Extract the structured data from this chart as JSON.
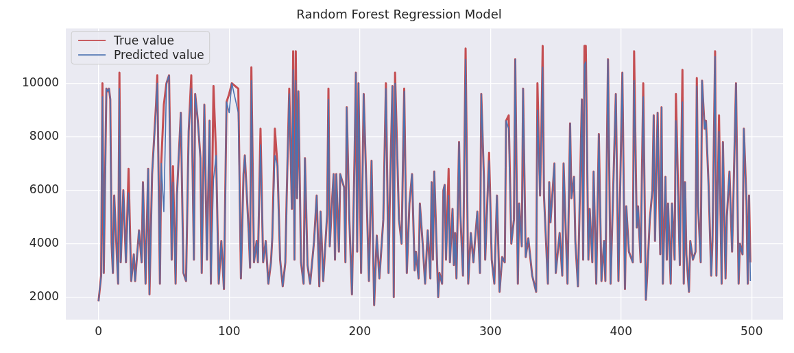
{
  "chart_data": {
    "type": "line",
    "title": "Random Forest Regression Model",
    "legend": "top left",
    "grid": true,
    "marker": "none",
    "xlim": [
      -25,
      524
    ],
    "xticks": [
      0,
      100,
      200,
      300,
      400,
      500
    ],
    "ylim": [
      1150,
      12050
    ],
    "yticks": [
      2000,
      4000,
      6000,
      8000,
      10000
    ],
    "x": [
      0,
      2,
      3,
      4,
      6,
      7,
      8,
      9,
      10,
      11,
      12,
      15,
      16,
      17,
      19,
      21,
      23,
      25,
      27,
      28,
      31,
      33,
      34,
      36,
      38,
      39,
      41,
      44,
      45,
      47,
      48,
      50,
      52,
      54,
      56,
      57,
      59,
      60,
      63,
      65,
      67,
      69,
      71,
      73,
      74,
      76,
      78,
      79,
      81,
      83,
      85,
      86,
      88,
      90,
      92,
      94,
      96,
      98,
      100,
      102,
      107,
      109,
      111,
      112,
      115,
      116,
      117,
      119,
      121,
      122,
      124,
      126,
      128,
      130,
      132,
      133,
      135,
      137,
      139,
      141,
      143,
      144,
      146,
      148,
      149,
      150,
      151,
      152,
      153,
      155,
      157,
      158,
      160,
      162,
      165,
      167,
      169,
      170,
      172,
      175,
      176,
      177,
      179,
      180,
      181,
      182,
      184,
      185,
      188,
      189,
      190,
      192,
      194,
      196,
      197,
      198,
      199,
      201,
      203,
      205,
      207,
      209,
      211,
      213,
      215,
      218,
      220,
      222,
      223,
      225,
      226,
      227,
      230,
      232,
      234,
      236,
      238,
      240,
      242,
      243,
      245,
      246,
      248,
      250,
      252,
      254,
      255,
      256,
      257,
      260,
      261,
      263,
      264,
      265,
      266,
      268,
      269,
      271,
      272,
      273,
      274,
      276,
      277,
      279,
      281,
      283,
      285,
      287,
      288,
      290,
      292,
      293,
      295,
      296,
      299,
      301,
      303,
      305,
      307,
      309,
      311,
      312,
      314,
      316,
      318,
      319,
      321,
      322,
      324,
      325,
      327,
      329,
      332,
      335,
      336,
      338,
      339,
      340,
      341,
      344,
      345,
      346,
      349,
      350,
      353,
      355,
      356,
      359,
      361,
      362,
      364,
      365,
      367,
      370,
      371,
      372,
      373,
      375,
      376,
      378,
      379,
      381,
      383,
      385,
      387,
      388,
      390,
      392,
      396,
      398,
      401,
      403,
      404,
      406,
      409,
      410,
      412,
      413,
      415,
      417,
      419,
      420,
      422,
      424,
      425,
      426,
      428,
      430,
      431,
      432,
      434,
      435,
      436,
      438,
      439,
      441,
      442,
      445,
      447,
      448,
      449,
      450,
      452,
      453,
      455,
      457,
      458,
      459,
      461,
      462,
      464,
      465,
      467,
      469,
      470,
      472,
      473,
      475,
      477,
      478,
      480,
      481,
      483,
      485,
      486,
      488,
      490,
      491,
      493,
      494,
      496,
      497,
      498,
      499
    ],
    "series": [
      {
        "name": "True value",
        "color": "#c44e52",
        "values": [
          1850,
          2800,
          10000,
          2900,
          9800,
          9700,
          9800,
          9400,
          4000,
          2900,
          5800,
          2500,
          10400,
          3300,
          6000,
          3300,
          6800,
          2600,
          3600,
          2600,
          4500,
          3300,
          6300,
          2500,
          6800,
          2100,
          6600,
          9200,
          10300,
          2500,
          7000,
          9200,
          10000,
          10300,
          3400,
          6900,
          2500,
          5800,
          8900,
          2900,
          2600,
          8200,
          10300,
          3400,
          9600,
          8600,
          7200,
          2900,
          9200,
          3400,
          8600,
          2500,
          9900,
          7300,
          2500,
          4100,
          2300,
          9300,
          9600,
          10000,
          9800,
          2700,
          6600,
          7300,
          4400,
          3100,
          10600,
          3300,
          4100,
          3300,
          8300,
          3300,
          4100,
          2500,
          3300,
          4200,
          8300,
          6900,
          3400,
          2400,
          3300,
          5700,
          9800,
          5300,
          11200,
          3400,
          11200,
          5700,
          9700,
          3300,
          2500,
          7200,
          3200,
          2500,
          4100,
          5800,
          2400,
          5200,
          2600,
          5100,
          9800,
          3900,
          5800,
          6600,
          3400,
          6600,
          3700,
          6600,
          6100,
          3300,
          9100,
          4900,
          2100,
          7300,
          10400,
          3700,
          10000,
          2900,
          9600,
          6200,
          2600,
          7100,
          1700,
          4300,
          2700,
          4900,
          10000,
          2900,
          5700,
          9900,
          2000,
          10400,
          4900,
          4000,
          9800,
          2900,
          5500,
          6600,
          3000,
          3700,
          2700,
          5500,
          4100,
          2500,
          4500,
          2700,
          6300,
          3400,
          6700,
          2000,
          2900,
          2500,
          6000,
          6200,
          3400,
          6800,
          3300,
          5300,
          3200,
          4400,
          2700,
          7800,
          5100,
          2800,
          11300,
          2500,
          4400,
          3300,
          4000,
          5200,
          2900,
          9600,
          6500,
          3400,
          7400,
          3400,
          2500,
          5800,
          2200,
          3500,
          3300,
          8600,
          8800,
          4000,
          4900,
          10900,
          2500,
          5500,
          3900,
          9800,
          3500,
          4200,
          2800,
          2200,
          10000,
          5800,
          8200,
          11400,
          5800,
          2500,
          6300,
          4800,
          7000,
          2900,
          4400,
          2800,
          7000,
          2500,
          8500,
          5700,
          6500,
          4100,
          2400,
          9400,
          3400,
          11400,
          11400,
          3400,
          5300,
          3300,
          6700,
          2500,
          8100,
          2600,
          4100,
          2600,
          10900,
          2500,
          9600,
          2600,
          10400,
          2300,
          5400,
          3700,
          3300,
          11200,
          4600,
          5400,
          3300,
          10000,
          1900,
          2800,
          4900,
          6000,
          8800,
          4100,
          8900,
          3600,
          9100,
          2500,
          6500,
          3400,
          5500,
          2500,
          5500,
          3400,
          9600,
          3200,
          10500,
          2500,
          6300,
          3600,
          2200,
          4100,
          3400,
          3700,
          10200,
          5400,
          3300,
          10100,
          8300,
          8600,
          6200,
          2800,
          4100,
          11200,
          2800,
          8800,
          2500,
          7800,
          2700,
          5000,
          6700,
          3700,
          5700,
          10000,
          2500,
          4000,
          3600,
          8300,
          5600,
          2500,
          5800,
          3300
        ]
      },
      {
        "name": "Predicted value",
        "color": "#4c72b0",
        "values": [
          1850,
          2800,
          9500,
          2900,
          9800,
          9700,
          9800,
          9400,
          4000,
          2900,
          5800,
          2500,
          9800,
          3300,
          6000,
          3300,
          5900,
          2600,
          3600,
          2600,
          4500,
          3300,
          6300,
          2500,
          6800,
          2100,
          6600,
          9000,
          10000,
          2500,
          7000,
          5200,
          10000,
          10300,
          3400,
          6300,
          2500,
          5800,
          8900,
          2900,
          2600,
          8200,
          9800,
          3400,
          9600,
          8600,
          7200,
          2900,
          9200,
          3400,
          8600,
          2500,
          6400,
          7300,
          2500,
          4100,
          2300,
          9300,
          8900,
          10000,
          8900,
          2700,
          6600,
          7300,
          4400,
          3100,
          10100,
          3300,
          4100,
          3300,
          7700,
          3300,
          4100,
          2500,
          3300,
          4200,
          7300,
          6900,
          3400,
          2400,
          3300,
          5700,
          9600,
          5300,
          10500,
          3400,
          10100,
          5700,
          9700,
          3300,
          2500,
          7200,
          3200,
          2500,
          4100,
          5800,
          2400,
          5200,
          2600,
          5100,
          9400,
          3900,
          5800,
          6600,
          3400,
          6600,
          3700,
          6600,
          6100,
          3300,
          9100,
          4900,
          2100,
          7300,
          10400,
          3700,
          10000,
          2900,
          9600,
          6200,
          2600,
          7100,
          1700,
          4300,
          2700,
          4900,
          9800,
          2900,
          5700,
          9900,
          2000,
          10000,
          4900,
          4000,
          9700,
          2900,
          5500,
          6600,
          3000,
          3700,
          2700,
          5500,
          4100,
          2500,
          4500,
          2700,
          6300,
          3400,
          6700,
          2000,
          2900,
          2500,
          6000,
          6200,
          3400,
          5800,
          3300,
          5300,
          3200,
          4400,
          2700,
          7800,
          5100,
          2800,
          10900,
          2500,
          4400,
          3300,
          4000,
          5200,
          2900,
          9600,
          6500,
          3400,
          7100,
          3400,
          2500,
          5800,
          2200,
          3500,
          3300,
          8600,
          8300,
          4000,
          4900,
          10900,
          2500,
          5500,
          3900,
          9800,
          3500,
          4200,
          2800,
          2200,
          9000,
          5800,
          8200,
          10600,
          5800,
          2500,
          6300,
          4800,
          7000,
          2900,
          4400,
          2800,
          7000,
          2500,
          8500,
          5700,
          6500,
          4100,
          2400,
          9400,
          3400,
          10700,
          10800,
          3400,
          5300,
          3300,
          6700,
          2500,
          8100,
          2600,
          4100,
          2600,
          10900,
          2500,
          9600,
          2600,
          10400,
          2300,
          5400,
          3700,
          3300,
          10100,
          4600,
          5400,
          3300,
          9500,
          1900,
          2800,
          4900,
          6000,
          8800,
          4100,
          8900,
          3600,
          9100,
          2500,
          6500,
          3400,
          5500,
          2500,
          5500,
          3400,
          8600,
          3200,
          9300,
          2500,
          6300,
          3600,
          2200,
          4100,
          3400,
          3700,
          9900,
          5400,
          3300,
          10100,
          8300,
          8600,
          6200,
          2800,
          4100,
          11000,
          2800,
          8200,
          2500,
          7800,
          2700,
          5000,
          6700,
          3700,
          5700,
          10000,
          2500,
          4000,
          3600,
          8300,
          5600,
          2500,
          5800,
          2600
        ]
      }
    ]
  }
}
